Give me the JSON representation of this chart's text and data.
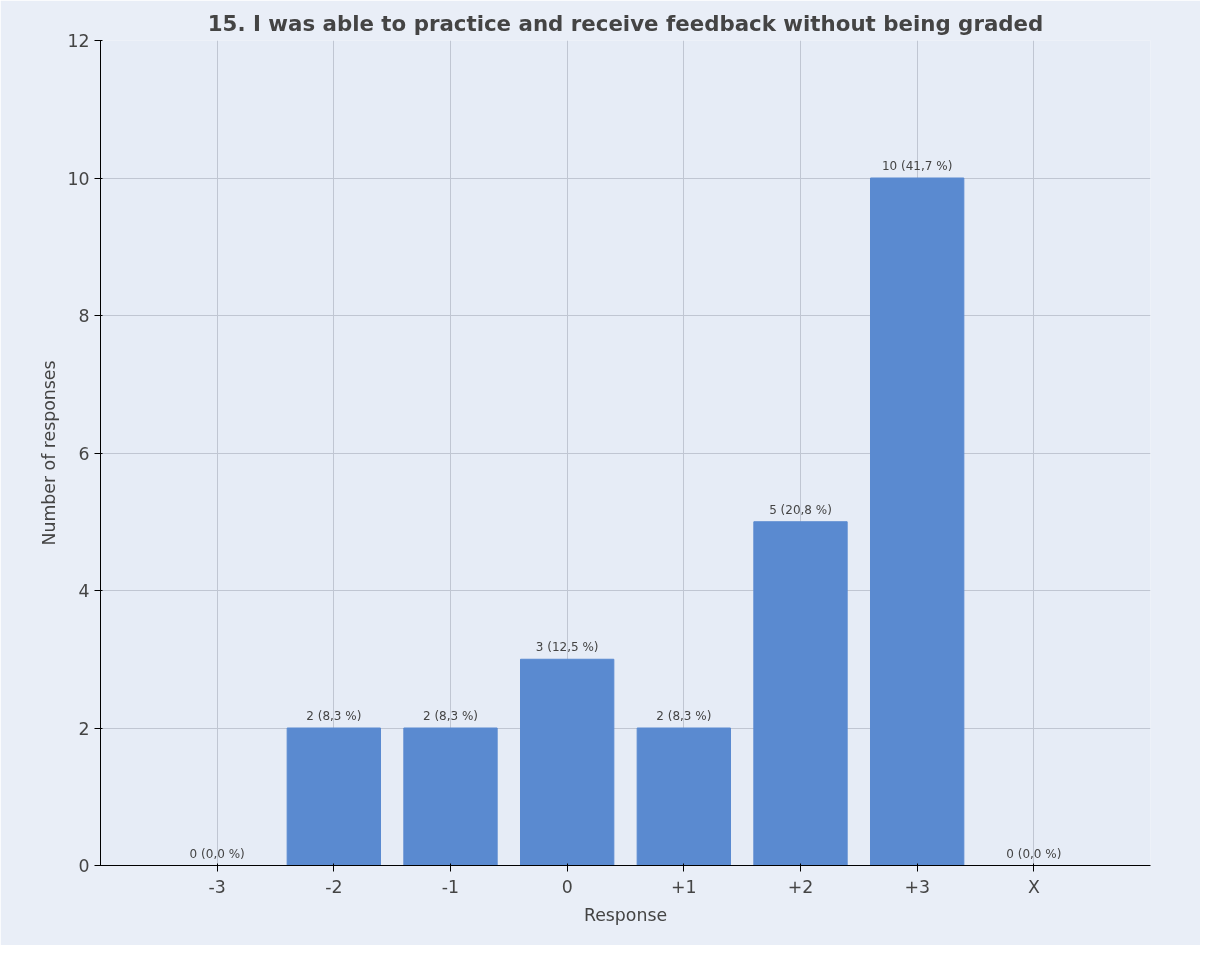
{
  "chart_data": {
    "type": "bar",
    "title": "15. I was able to practice and receive feedback without being graded",
    "xlabel": "Response",
    "ylabel": "Number of responses",
    "categories": [
      "-3",
      "-2",
      "-1",
      "0",
      "+1",
      "+2",
      "+3",
      "X"
    ],
    "values": [
      0,
      2,
      2,
      3,
      2,
      5,
      10,
      0
    ],
    "value_labels": [
      "0 (0,0 %)",
      "2 (8,3 %)",
      "2 (8,3 %)",
      "3 (12,5 %)",
      "2 (8,3 %)",
      "5 (20,8 %)",
      "10 (41,7 %)",
      "0 (0,0 %)"
    ],
    "color": "#5a8ad0",
    "ylim": [
      0,
      12
    ],
    "yticks": [
      0,
      2,
      4,
      6,
      8,
      10,
      12
    ],
    "grid": true
  }
}
